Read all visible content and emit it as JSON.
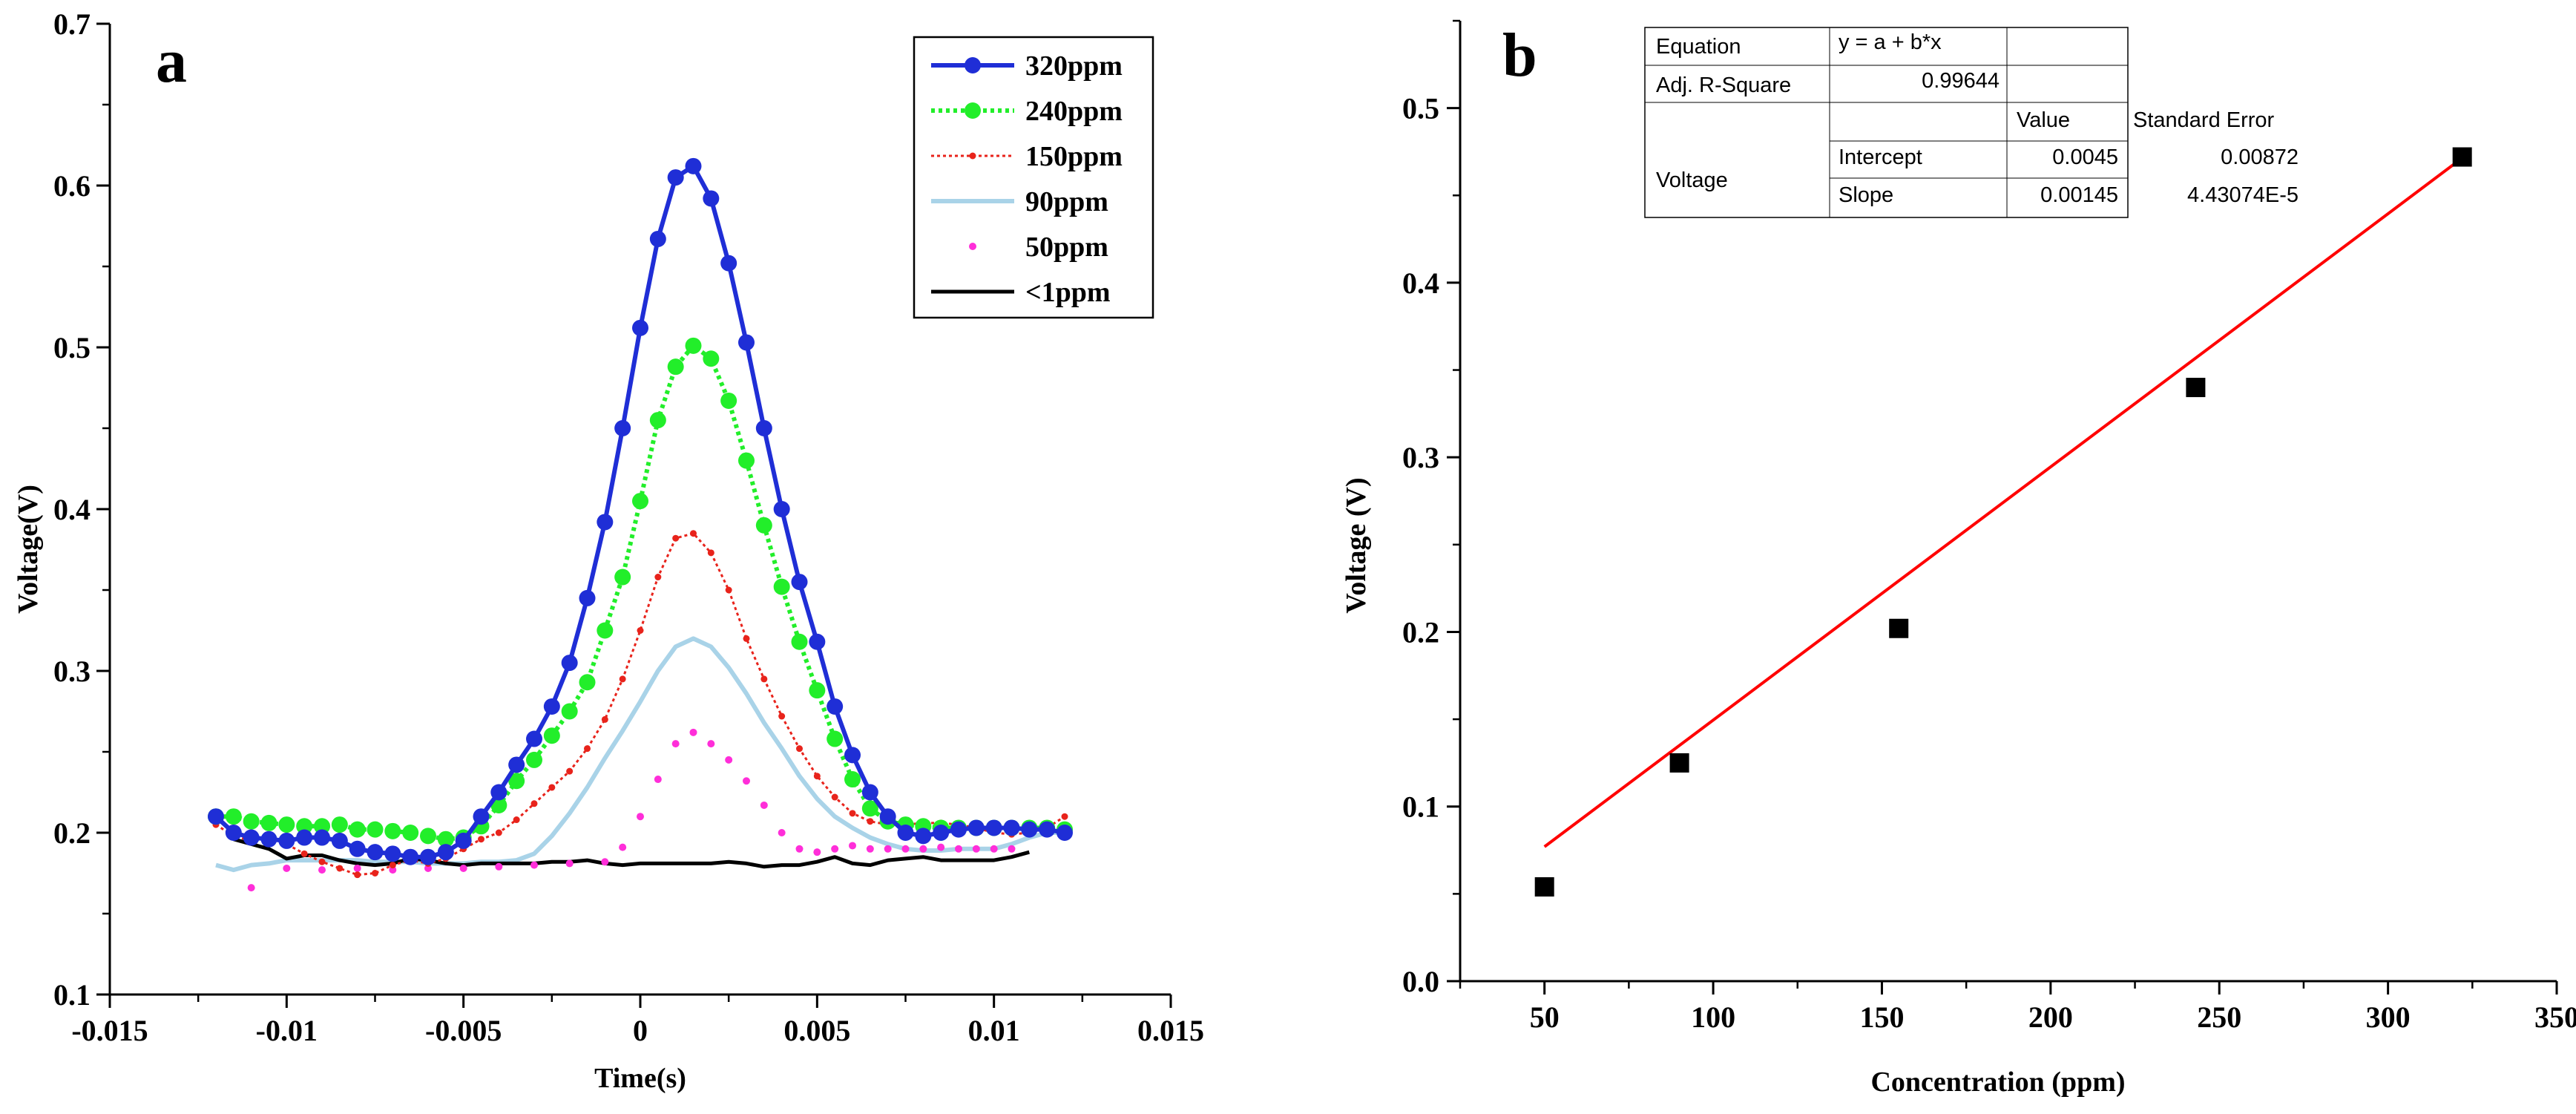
{
  "chart_data": [
    {
      "id": "a",
      "panel_label": "a",
      "type": "line",
      "xlabel": "Time(s)",
      "ylabel": "Voltage(V)",
      "xlim": [
        -0.015,
        0.015
      ],
      "ylim": [
        0.1,
        0.7
      ],
      "xticks": [
        -0.015,
        -0.01,
        -0.005,
        0,
        0.005,
        0.01,
        0.015
      ],
      "xtick_labels": [
        "-0.015",
        "-0.01",
        "-0.005",
        "0",
        "0.005",
        "0.01",
        "0.015"
      ],
      "yticks": [
        0.1,
        0.2,
        0.3,
        0.4,
        0.5,
        0.6,
        0.7
      ],
      "ytick_labels": [
        "0.1",
        "0.2",
        "0.3",
        "0.4",
        "0.5",
        "0.6",
        "0.7"
      ],
      "legend_position": "top-right",
      "series": [
        {
          "name": "320ppm",
          "color": "#1f2ed6",
          "style": "line-marker",
          "x": [
            -0.012,
            -0.0115,
            -0.011,
            -0.0105,
            -0.01,
            -0.0095,
            -0.009,
            -0.0085,
            -0.008,
            -0.0075,
            -0.007,
            -0.0065,
            -0.006,
            -0.0055,
            -0.005,
            -0.0045,
            -0.004,
            -0.0035,
            -0.003,
            -0.0025,
            -0.002,
            -0.0015,
            -0.001,
            -0.0005,
            0,
            0.0005,
            0.001,
            0.0015,
            0.002,
            0.0025,
            0.003,
            0.0035,
            0.004,
            0.0045,
            0.005,
            0.0055,
            0.006,
            0.0065,
            0.007,
            0.0075,
            0.008,
            0.0085,
            0.009,
            0.0095,
            0.01,
            0.0105,
            0.011,
            0.0115,
            0.012
          ],
          "y": [
            0.21,
            0.2,
            0.197,
            0.196,
            0.195,
            0.197,
            0.197,
            0.195,
            0.19,
            0.188,
            0.187,
            0.185,
            0.185,
            0.188,
            0.195,
            0.21,
            0.225,
            0.242,
            0.258,
            0.278,
            0.305,
            0.345,
            0.392,
            0.45,
            0.512,
            0.567,
            0.605,
            0.612,
            0.592,
            0.552,
            0.503,
            0.45,
            0.4,
            0.355,
            0.318,
            0.278,
            0.248,
            0.225,
            0.21,
            0.2,
            0.198,
            0.2,
            0.202,
            0.203,
            0.203,
            0.203,
            0.202,
            0.202,
            0.2
          ]
        },
        {
          "name": "240ppm",
          "color": "#22ee2a",
          "style": "dotted-marker",
          "x": [
            -0.012,
            -0.0115,
            -0.011,
            -0.0105,
            -0.01,
            -0.0095,
            -0.009,
            -0.0085,
            -0.008,
            -0.0075,
            -0.007,
            -0.0065,
            -0.006,
            -0.0055,
            -0.005,
            -0.0045,
            -0.004,
            -0.0035,
            -0.003,
            -0.0025,
            -0.002,
            -0.0015,
            -0.001,
            -0.0005,
            0,
            0.0005,
            0.001,
            0.0015,
            0.002,
            0.0025,
            0.003,
            0.0035,
            0.004,
            0.0045,
            0.005,
            0.0055,
            0.006,
            0.0065,
            0.007,
            0.0075,
            0.008,
            0.0085,
            0.009,
            0.0095,
            0.01,
            0.0105,
            0.011,
            0.0115,
            0.012
          ],
          "y": [
            0.21,
            0.21,
            0.207,
            0.206,
            0.205,
            0.204,
            0.204,
            0.205,
            0.202,
            0.202,
            0.201,
            0.2,
            0.198,
            0.196,
            0.197,
            0.204,
            0.217,
            0.232,
            0.245,
            0.26,
            0.275,
            0.293,
            0.325,
            0.358,
            0.405,
            0.455,
            0.488,
            0.501,
            0.493,
            0.467,
            0.43,
            0.39,
            0.352,
            0.318,
            0.288,
            0.258,
            0.233,
            0.215,
            0.207,
            0.205,
            0.204,
            0.203,
            0.203,
            0.203,
            0.203,
            0.203,
            0.203,
            0.203,
            0.202
          ]
        },
        {
          "name": "150ppm",
          "color": "#e8231b",
          "style": "dotted-small-marker",
          "x": [
            -0.012,
            -0.0115,
            -0.011,
            -0.0105,
            -0.01,
            -0.0095,
            -0.009,
            -0.0085,
            -0.008,
            -0.0075,
            -0.007,
            -0.0065,
            -0.006,
            -0.0055,
            -0.005,
            -0.0045,
            -0.004,
            -0.0035,
            -0.003,
            -0.0025,
            -0.002,
            -0.0015,
            -0.001,
            -0.0005,
            0,
            0.0005,
            0.001,
            0.0015,
            0.002,
            0.0025,
            0.003,
            0.0035,
            0.004,
            0.0045,
            0.005,
            0.0055,
            0.006,
            0.0065,
            0.007,
            0.0075,
            0.008,
            0.0085,
            0.009,
            0.0095,
            0.01,
            0.0105,
            0.011,
            0.0115,
            0.012
          ],
          "y": [
            0.205,
            0.198,
            0.195,
            0.197,
            0.193,
            0.187,
            0.182,
            0.178,
            0.174,
            0.175,
            0.18,
            0.183,
            0.181,
            0.184,
            0.19,
            0.196,
            0.2,
            0.208,
            0.218,
            0.228,
            0.238,
            0.252,
            0.27,
            0.295,
            0.325,
            0.358,
            0.382,
            0.385,
            0.373,
            0.35,
            0.32,
            0.295,
            0.272,
            0.252,
            0.235,
            0.222,
            0.212,
            0.207,
            0.205,
            0.205,
            0.206,
            0.206,
            0.205,
            0.203,
            0.2,
            0.199,
            0.2,
            0.203,
            0.21
          ]
        },
        {
          "name": "90ppm",
          "color": "#a9d3e8",
          "style": "line",
          "x": [
            -0.012,
            -0.0115,
            -0.011,
            -0.0105,
            -0.01,
            -0.0095,
            -0.009,
            -0.0085,
            -0.008,
            -0.0075,
            -0.007,
            -0.0065,
            -0.006,
            -0.0055,
            -0.005,
            -0.0045,
            -0.004,
            -0.0035,
            -0.003,
            -0.0025,
            -0.002,
            -0.0015,
            -0.001,
            -0.0005,
            0,
            0.0005,
            0.001,
            0.0015,
            0.002,
            0.0025,
            0.003,
            0.0035,
            0.004,
            0.0045,
            0.005,
            0.0055,
            0.006,
            0.0065,
            0.007,
            0.0075,
            0.008,
            0.0085,
            0.009,
            0.0095,
            0.01,
            0.0105,
            0.011,
            0.0115,
            0.012
          ],
          "y": [
            0.18,
            0.177,
            0.18,
            0.181,
            0.183,
            0.183,
            0.183,
            0.183,
            0.183,
            0.182,
            0.182,
            0.182,
            0.181,
            0.181,
            0.181,
            0.182,
            0.182,
            0.183,
            0.187,
            0.198,
            0.212,
            0.228,
            0.246,
            0.263,
            0.281,
            0.3,
            0.315,
            0.32,
            0.315,
            0.302,
            0.286,
            0.268,
            0.252,
            0.235,
            0.221,
            0.21,
            0.203,
            0.197,
            0.193,
            0.19,
            0.189,
            0.189,
            0.19,
            0.19,
            0.19,
            0.193,
            0.197,
            0.2,
            0.2
          ]
        },
        {
          "name": "50ppm",
          "color": "#ff2ed9",
          "style": "scatter",
          "x": [
            -0.011,
            -0.01,
            -0.009,
            -0.008,
            -0.007,
            -0.006,
            -0.005,
            -0.004,
            -0.003,
            -0.002,
            -0.001,
            -0.0005,
            0,
            0.0005,
            0.001,
            0.0015,
            0.002,
            0.0025,
            0.003,
            0.0035,
            0.004,
            0.0045,
            0.005,
            0.0055,
            0.006,
            0.0065,
            0.007,
            0.0075,
            0.008,
            0.0085,
            0.009,
            0.0095,
            0.01,
            0.0105
          ],
          "y": [
            0.166,
            0.178,
            0.177,
            0.178,
            0.177,
            0.178,
            0.178,
            0.179,
            0.18,
            0.181,
            0.182,
            0.191,
            0.21,
            0.233,
            0.255,
            0.262,
            0.255,
            0.245,
            0.232,
            0.217,
            0.2,
            0.19,
            0.188,
            0.19,
            0.192,
            0.19,
            0.19,
            0.19,
            0.19,
            0.191,
            0.19,
            0.19,
            0.19,
            0.19
          ]
        },
        {
          "name": "<1ppm",
          "color": "#000000",
          "style": "line",
          "x": [
            -0.0115,
            -0.011,
            -0.0105,
            -0.01,
            -0.0095,
            -0.009,
            -0.0085,
            -0.008,
            -0.0075,
            -0.007,
            -0.0065,
            -0.006,
            -0.0055,
            -0.005,
            -0.0045,
            -0.004,
            -0.0035,
            -0.003,
            -0.0025,
            -0.002,
            -0.0015,
            -0.001,
            -0.0005,
            0,
            0.0005,
            0.001,
            0.0015,
            0.002,
            0.0025,
            0.003,
            0.0035,
            0.004,
            0.0045,
            0.005,
            0.0055,
            0.006,
            0.0065,
            0.007,
            0.0075,
            0.008,
            0.0085,
            0.009,
            0.0095,
            0.01,
            0.0105,
            0.011
          ],
          "y": [
            0.196,
            0.193,
            0.19,
            0.184,
            0.186,
            0.186,
            0.183,
            0.181,
            0.18,
            0.181,
            0.184,
            0.183,
            0.181,
            0.18,
            0.181,
            0.181,
            0.181,
            0.181,
            0.182,
            0.182,
            0.183,
            0.181,
            0.18,
            0.181,
            0.181,
            0.181,
            0.181,
            0.181,
            0.182,
            0.181,
            0.179,
            0.18,
            0.18,
            0.182,
            0.185,
            0.181,
            0.18,
            0.183,
            0.184,
            0.185,
            0.183,
            0.183,
            0.183,
            0.183,
            0.185,
            0.188
          ]
        }
      ]
    },
    {
      "id": "b",
      "panel_label": "b",
      "type": "scatter",
      "xlabel": "Concentration (ppm)",
      "ylabel": "Voltage (V)",
      "xlim": [
        25,
        350
      ],
      "ylim": [
        0.0,
        0.55
      ],
      "xticks": [
        50,
        100,
        150,
        200,
        250,
        300,
        350
      ],
      "xtick_labels": [
        "50",
        "100",
        "150",
        "200",
        "250",
        "300",
        "350"
      ],
      "yticks": [
        0.0,
        0.1,
        0.2,
        0.3,
        0.4,
        0.5
      ],
      "ytick_labels": [
        "0.0",
        "0.1",
        "0.2",
        "0.3",
        "0.4",
        "0.5"
      ],
      "points": {
        "x": [
          50,
          90,
          155,
          243,
          322
        ],
        "y": [
          0.054,
          0.125,
          0.202,
          0.34,
          0.472
        ],
        "color": "#000000"
      },
      "fit_line": {
        "intercept": 0.0045,
        "slope": 0.00145,
        "x_range": [
          50,
          322
        ],
        "color": "#ff0000"
      },
      "stats_table": {
        "equation_label": "Equation",
        "equation": "y = a + b*x",
        "adj_r2_label": "Adj. R-Square",
        "adj_r2": "0.99644",
        "header_value": "Value",
        "header_std_error": "Standard Error",
        "variable": "Voltage",
        "rows": [
          {
            "param": "Intercept",
            "value": "0.0045",
            "std_error": "0.00872"
          },
          {
            "param": "Slope",
            "value": "0.00145",
            "std_error": "4.43074E-5"
          }
        ]
      }
    }
  ]
}
